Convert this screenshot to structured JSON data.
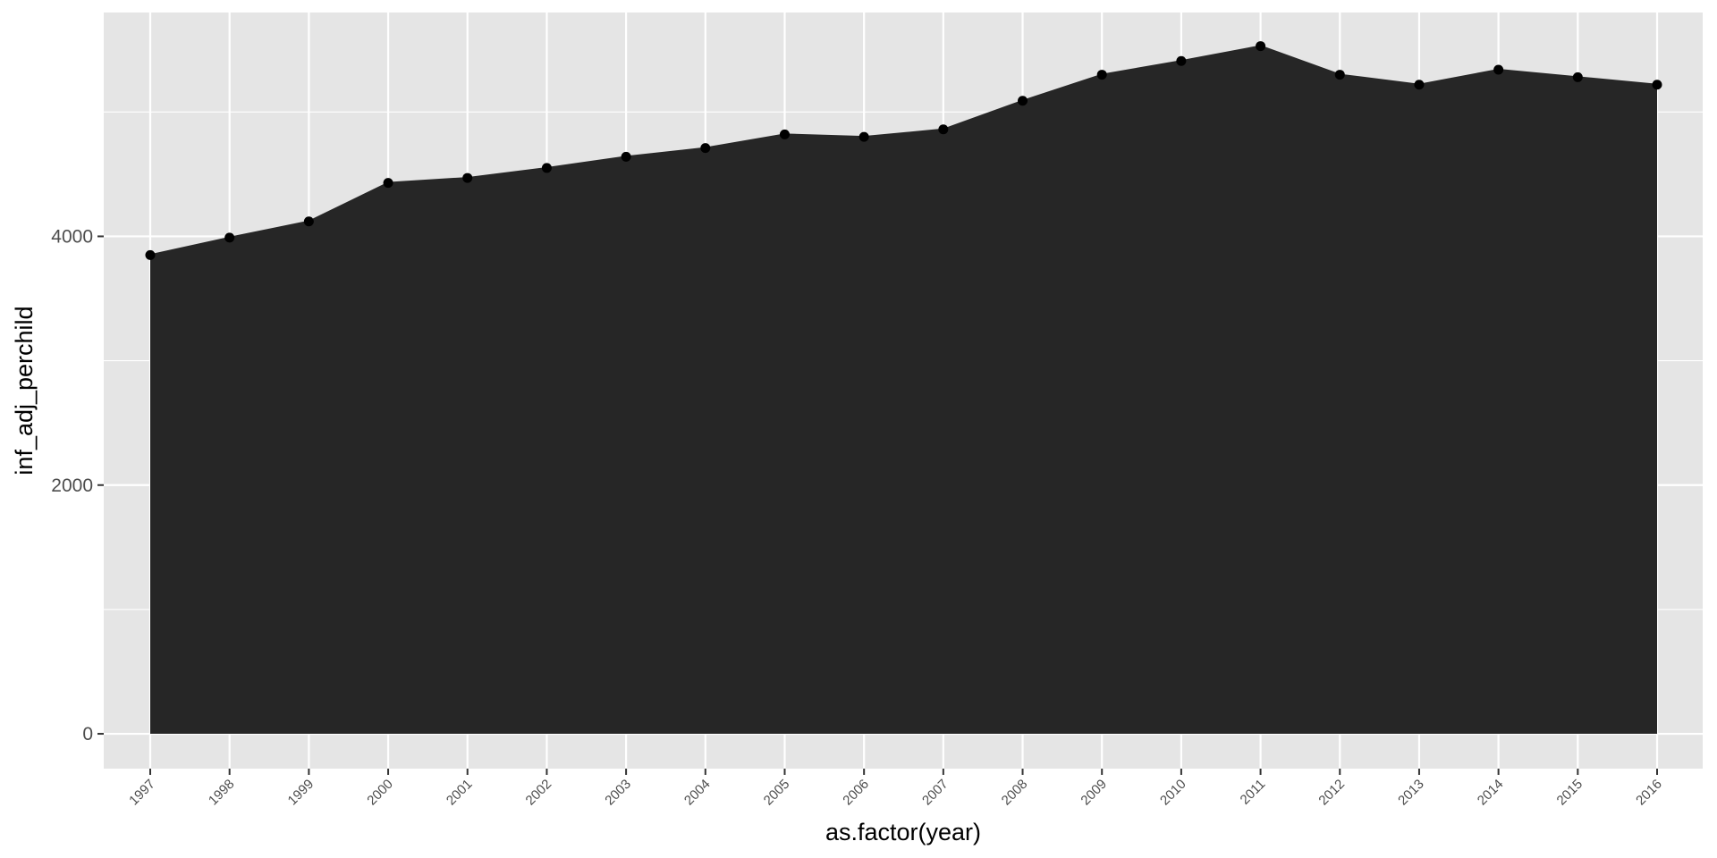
{
  "chart_data": {
    "type": "area",
    "xlabel": "as.factor(year)",
    "ylabel": "inf_adj_perchild",
    "categories": [
      "1997",
      "1998",
      "1999",
      "2000",
      "2001",
      "2002",
      "2003",
      "2004",
      "2005",
      "2006",
      "2007",
      "2008",
      "2009",
      "2010",
      "2011",
      "2012",
      "2013",
      "2014",
      "2015",
      "2016"
    ],
    "values": [
      3850,
      3990,
      4120,
      4430,
      4470,
      4550,
      4640,
      4710,
      4820,
      4800,
      4860,
      5090,
      5300,
      5410,
      5530,
      5300,
      5220,
      5340,
      5280,
      5220
    ],
    "ylim": [
      -280,
      5800
    ],
    "yticks": [
      0,
      2000,
      4000
    ],
    "yticks_labels": [
      "0",
      "2000",
      "4000"
    ],
    "grid": true,
    "legend": "none",
    "colors": {
      "panel_background": "#e5e5e5",
      "grid": "#ffffff",
      "area_fill": "#262626",
      "point": "#000000",
      "tick": "#333333"
    }
  }
}
